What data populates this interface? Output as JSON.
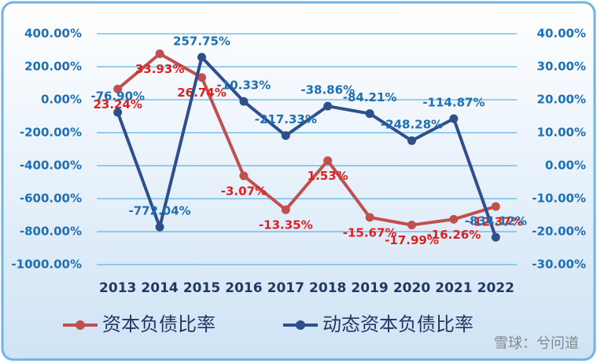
{
  "chart_data": {
    "type": "line",
    "categories": [
      "2013",
      "2014",
      "2015",
      "2016",
      "2017",
      "2018",
      "2019",
      "2020",
      "2021",
      "2022"
    ],
    "series": [
      {
        "name": "资本负债比率",
        "color": "#c0504d",
        "axis": "y2",
        "values": [
          23.24,
          33.93,
          26.74,
          -3.07,
          -13.35,
          1.53,
          -15.67,
          -17.99,
          -16.26,
          -12.37
        ],
        "value_labels": [
          "23.24%",
          "33.93%",
          "26.74%",
          "-3.07%",
          "-13.35%",
          "1.53%",
          "-15.67%",
          "-17.99%",
          "-16.26%",
          "-12.37%"
        ]
      },
      {
        "name": "动态资本负债比率",
        "color": "#2f4e8c",
        "values": [
          -76.9,
          -772.04,
          257.75,
          -10.33,
          -217.33,
          -38.86,
          -84.21,
          -248.28,
          -114.87,
          -834.12
        ],
        "value_labels": [
          "-76.90%",
          "-772.04%",
          "257.75%",
          "-10.33%",
          "-217.33%",
          "-38.86%",
          "-84.21%",
          "-248.28%",
          "-114.87%",
          "-834.12%"
        ]
      }
    ],
    "ylim": [
      -1000,
      400
    ],
    "yticks": [
      {
        "value": 400,
        "label": "400.00%"
      },
      {
        "value": 200,
        "label": "200.00%"
      },
      {
        "value": 0,
        "label": "0.00%"
      },
      {
        "value": -200,
        "label": "-200.00%"
      },
      {
        "value": -400,
        "label": "-400.00%"
      },
      {
        "value": -600,
        "label": "-600.00%"
      },
      {
        "value": -800,
        "label": "-800.00%"
      },
      {
        "value": -1000,
        "label": "-1000.00%"
      }
    ],
    "y2lim": [
      -30,
      40
    ],
    "y2ticks": [
      {
        "value": 40,
        "label": "40.00%"
      },
      {
        "value": 30,
        "label": "30.00%"
      },
      {
        "value": 20,
        "label": "20.00%"
      },
      {
        "value": 10,
        "label": "10.00%"
      },
      {
        "value": 0,
        "label": "0.00%"
      },
      {
        "value": -10,
        "label": "-10.00%"
      },
      {
        "value": -20,
        "label": "-20.00%"
      },
      {
        "value": -30,
        "label": "-30.00%"
      }
    ],
    "grid": true,
    "legend": "bottom",
    "watermark": "雪球：兮问道"
  }
}
